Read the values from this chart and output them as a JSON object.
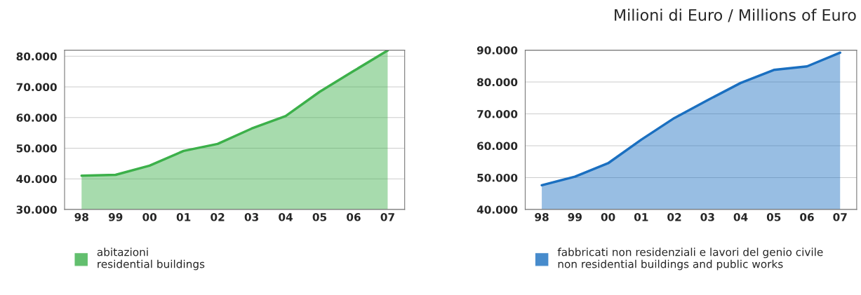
{
  "chart_data": [
    {
      "type": "area",
      "categories": [
        "98",
        "99",
        "00",
        "01",
        "02",
        "03",
        "04",
        "05",
        "06",
        "07"
      ],
      "series": [
        {
          "name": "abitazioni\nresidential buildings",
          "color": "#3cb04a",
          "values": [
            41000,
            41300,
            44300,
            49100,
            51400,
            56400,
            60500,
            68400,
            75200,
            81900
          ]
        }
      ],
      "ylim": [
        30000,
        82000
      ],
      "yticks": [
        {
          "value": 30000,
          "label": "30.000"
        },
        {
          "value": 40000,
          "label": "40.000"
        },
        {
          "value": 50000,
          "label": "50.000"
        },
        {
          "value": 60000,
          "label": "60.000"
        },
        {
          "value": 70000,
          "label": "70.000"
        },
        {
          "value": 80000,
          "label": "80.000"
        }
      ],
      "grid": "y",
      "legend": "bottom"
    },
    {
      "type": "area",
      "title": "Milioni di Euro / Millions of Euro",
      "categories": [
        "98",
        "99",
        "00",
        "01",
        "02",
        "03",
        "04",
        "05",
        "06",
        "07"
      ],
      "series": [
        {
          "name": "fabbricati non residenziali e lavori del genio civile\nnon residential buildings and public works",
          "color": "#1a6fc0",
          "values": [
            47600,
            50300,
            54500,
            61900,
            68700,
            74300,
            79700,
            83800,
            84900,
            89200
          ]
        }
      ],
      "ylim": [
        40000,
        90000
      ],
      "yticks": [
        {
          "value": 40000,
          "label": "40.000"
        },
        {
          "value": 50000,
          "label": "50.000"
        },
        {
          "value": 60000,
          "label": "60.000"
        },
        {
          "value": 70000,
          "label": "70.000"
        },
        {
          "value": 80000,
          "label": "80.000"
        },
        {
          "value": 90000,
          "label": "90.000"
        }
      ],
      "grid": "y",
      "legend": "bottom"
    }
  ]
}
